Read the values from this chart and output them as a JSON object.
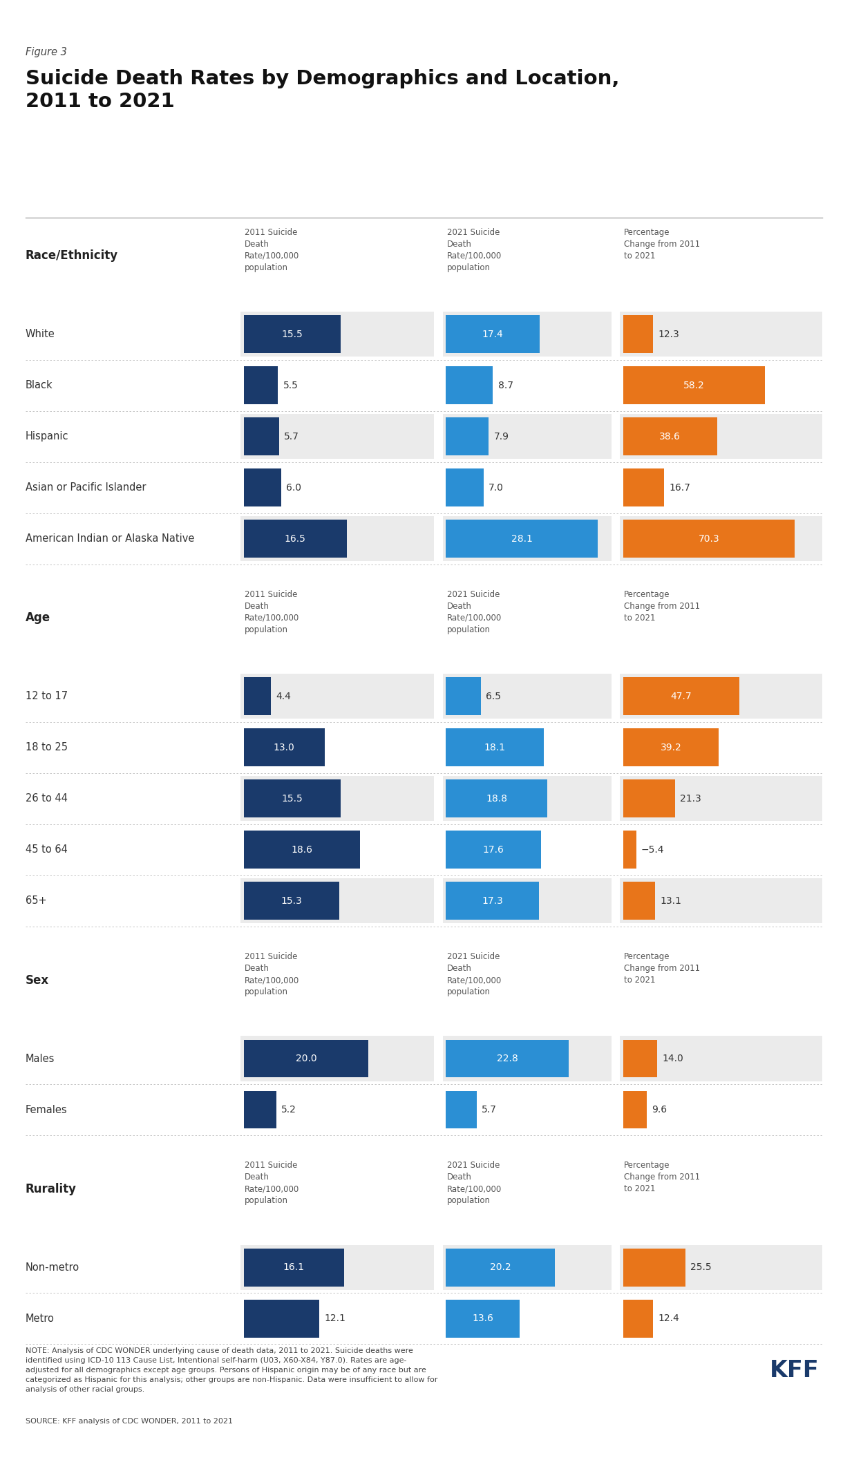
{
  "figure_label": "Figure 3",
  "title": "Suicide Death Rates by Demographics and Location,\n2011 to 2021",
  "col_headers": [
    "2011 Suicide\nDeath\nRate/100,000\npopulation",
    "2021 Suicide\nDeath\nRate/100,000\npopulation",
    "Percentage\nChange from 2011\nto 2021"
  ],
  "sections": [
    {
      "section_label": "Race/Ethnicity",
      "rows": [
        {
          "label": "White",
          "v2011": 15.5,
          "v2021": 17.4,
          "pct": 12.3
        },
        {
          "label": "Black",
          "v2011": 5.5,
          "v2021": 8.7,
          "pct": 58.2
        },
        {
          "label": "Hispanic",
          "v2011": 5.7,
          "v2021": 7.9,
          "pct": 38.6
        },
        {
          "label": "Asian or Pacific Islander",
          "v2011": 6.0,
          "v2021": 7.0,
          "pct": 16.7
        },
        {
          "label": "American Indian or Alaska Native",
          "v2011": 16.5,
          "v2021": 28.1,
          "pct": 70.3
        }
      ]
    },
    {
      "section_label": "Age",
      "rows": [
        {
          "label": "12 to 17",
          "v2011": 4.4,
          "v2021": 6.5,
          "pct": 47.7
        },
        {
          "label": "18 to 25",
          "v2011": 13.0,
          "v2021": 18.1,
          "pct": 39.2
        },
        {
          "label": "26 to 44",
          "v2011": 15.5,
          "v2021": 18.8,
          "pct": 21.3
        },
        {
          "label": "45 to 64",
          "v2011": 18.6,
          "v2021": 17.6,
          "pct": -5.4
        },
        {
          "label": "65+",
          "v2011": 15.3,
          "v2021": 17.3,
          "pct": 13.1
        }
      ]
    },
    {
      "section_label": "Sex",
      "rows": [
        {
          "label": "Males",
          "v2011": 20.0,
          "v2021": 22.8,
          "pct": 14.0
        },
        {
          "label": "Females",
          "v2011": 5.2,
          "v2021": 5.7,
          "pct": 9.6
        }
      ]
    },
    {
      "section_label": "Rurality",
      "rows": [
        {
          "label": "Non-metro",
          "v2011": 16.1,
          "v2021": 20.2,
          "pct": 25.5
        },
        {
          "label": "Metro",
          "v2011": 12.1,
          "v2021": 13.6,
          "pct": 12.4
        }
      ]
    }
  ],
  "color_2011": "#1a3a6b",
  "color_2021": "#2b8fd4",
  "color_pct": "#e8751a",
  "color_bg_gray": "#ebebeb",
  "color_bg_white": "#ffffff",
  "max_2011": 30,
  "max_2021": 30,
  "max_pct": 80,
  "note": "NOTE: Analysis of CDC WONDER underlying cause of death data, 2011 to 2021. Suicide deaths were\nidentified using ICD-10 113 Cause List, Intentional self-harm (U03, X60-X84, Y87.0). Rates are age-\nadjusted for all demographics except age groups. Persons of Hispanic origin may be of any race but are\ncategorized as Hispanic for this analysis; other groups are non-Hispanic. Data were insufficient to allow for\nanalysis of other racial groups.",
  "source": "SOURCE: KFF analysis of CDC WONDER, 2011 to 2021"
}
